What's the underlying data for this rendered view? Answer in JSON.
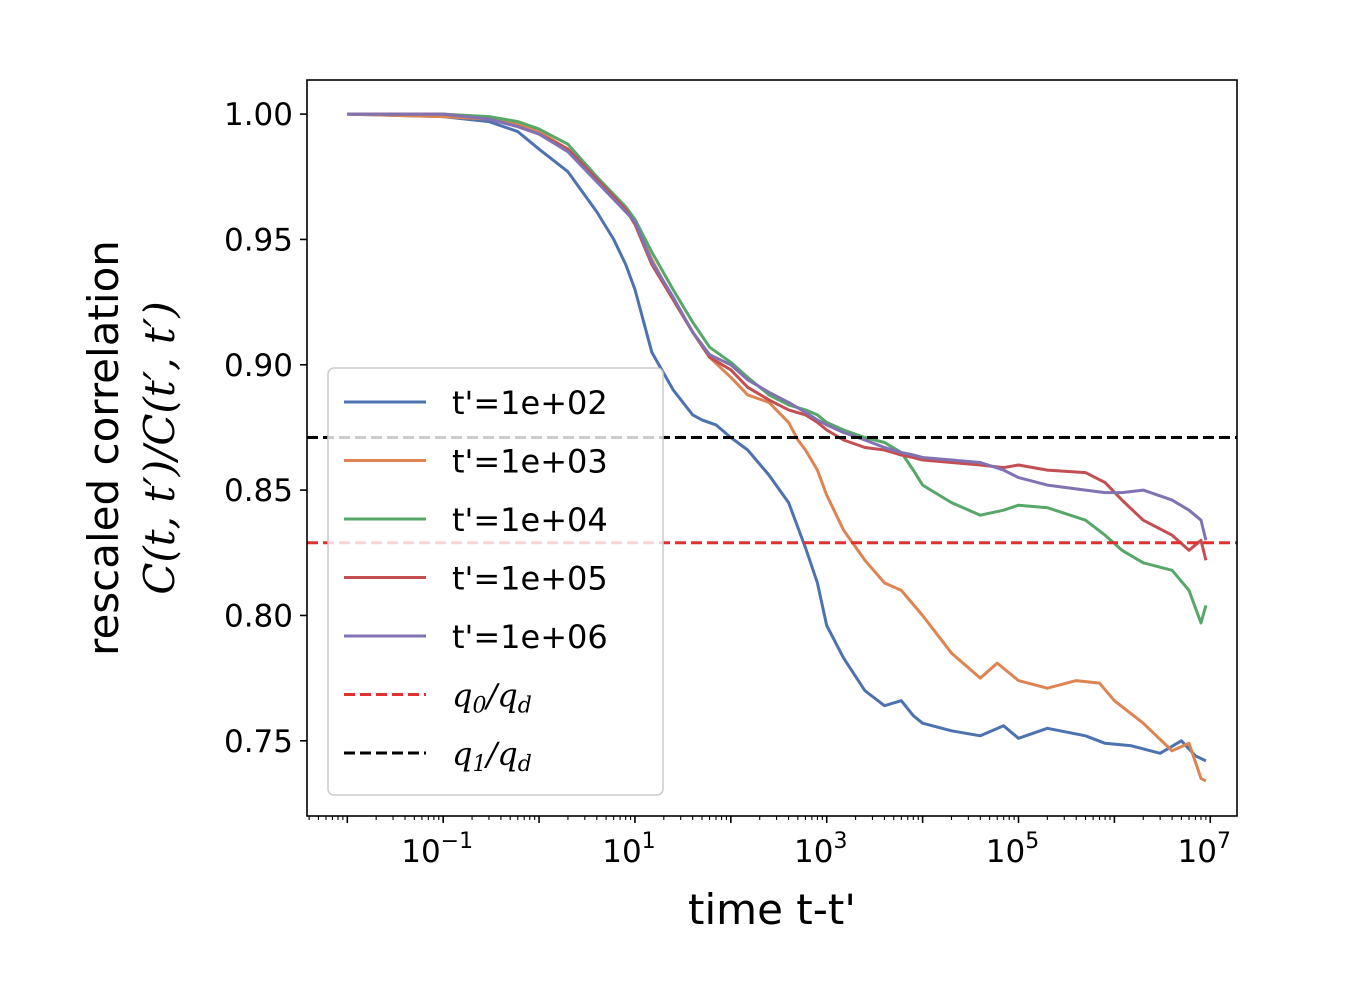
{
  "chart_data": {
    "type": "line",
    "xlabel": "time t-t'",
    "ylabel_line1": "rescaled correlation",
    "ylabel_line2": "C(t, t′)/C(t′, t′)",
    "x_scale": "log",
    "xlim": [
      0.0038,
      19000000
    ],
    "ylim": [
      0.72,
      1.0136
    ],
    "x_ticks": [
      {
        "value": 0.1,
        "base": "10",
        "exp": "−1"
      },
      {
        "value": 10,
        "base": "10",
        "exp": "1"
      },
      {
        "value": 1000,
        "base": "10",
        "exp": "3"
      },
      {
        "value": 100000,
        "base": "10",
        "exp": "5"
      },
      {
        "value": 10000000,
        "base": "10",
        "exp": "7"
      }
    ],
    "y_ticks": [
      {
        "value": 0.75,
        "label": "0.75"
      },
      {
        "value": 0.8,
        "label": "0.80"
      },
      {
        "value": 0.85,
        "label": "0.85"
      },
      {
        "value": 0.9,
        "label": "0.90"
      },
      {
        "value": 0.95,
        "label": "0.95"
      },
      {
        "value": 1.0,
        "label": "1.00"
      }
    ],
    "grid": false,
    "legend_position": "lower-left",
    "series": [
      {
        "name": "t'=1e+02",
        "color": "#4c72b0",
        "style": "solid",
        "x": [
          0.01,
          0.1,
          0.3,
          0.6,
          1,
          2,
          4,
          6,
          8,
          10,
          15,
          25,
          40,
          50,
          70,
          100,
          150,
          250,
          400,
          600,
          800,
          1000,
          1500,
          2500,
          4000,
          6000,
          8000,
          10000,
          20000,
          40000,
          70000,
          100000,
          200000,
          500000,
          800000,
          1500000,
          3000000,
          5000000,
          7000000,
          9000000
        ],
        "y": [
          1.0,
          0.999,
          0.997,
          0.993,
          0.986,
          0.977,
          0.961,
          0.95,
          0.94,
          0.93,
          0.905,
          0.89,
          0.88,
          0.878,
          0.876,
          0.871,
          0.866,
          0.856,
          0.845,
          0.827,
          0.813,
          0.796,
          0.783,
          0.77,
          0.764,
          0.766,
          0.76,
          0.757,
          0.754,
          0.752,
          0.756,
          0.751,
          0.755,
          0.752,
          0.749,
          0.748,
          0.745,
          0.75,
          0.744,
          0.742
        ]
      },
      {
        "name": "t'=1e+03",
        "color": "#dd8452",
        "style": "solid",
        "x": [
          0.01,
          0.1,
          0.3,
          0.6,
          1,
          2,
          4,
          6,
          8,
          10,
          15,
          25,
          40,
          60,
          100,
          150,
          250,
          400,
          500,
          600,
          800,
          1000,
          1500,
          2500,
          4000,
          6000,
          10000,
          20000,
          40000,
          60000,
          100000,
          200000,
          400000,
          700000,
          1000000,
          2000000,
          4000000,
          6000000,
          8000000,
          9000000
        ],
        "y": [
          1.0,
          0.999,
          0.998,
          0.996,
          0.993,
          0.986,
          0.974,
          0.967,
          0.962,
          0.957,
          0.942,
          0.926,
          0.913,
          0.903,
          0.895,
          0.888,
          0.885,
          0.877,
          0.87,
          0.866,
          0.858,
          0.848,
          0.834,
          0.822,
          0.813,
          0.81,
          0.8,
          0.785,
          0.775,
          0.781,
          0.774,
          0.771,
          0.774,
          0.773,
          0.766,
          0.757,
          0.746,
          0.749,
          0.735,
          0.734
        ]
      },
      {
        "name": "t'=1e+04",
        "color": "#55a868",
        "style": "solid",
        "x": [
          0.01,
          0.1,
          0.3,
          0.6,
          1,
          2,
          4,
          6,
          8,
          10,
          15,
          25,
          40,
          60,
          100,
          150,
          250,
          400,
          600,
          800,
          1000,
          1500,
          2500,
          4000,
          6000,
          8000,
          10000,
          20000,
          40000,
          70000,
          100000,
          200000,
          500000,
          800000,
          1200000,
          2000000,
          4000000,
          6000000,
          8000000,
          9000000
        ],
        "y": [
          1.0,
          1.0,
          0.999,
          0.997,
          0.994,
          0.988,
          0.975,
          0.968,
          0.963,
          0.958,
          0.945,
          0.93,
          0.917,
          0.907,
          0.901,
          0.895,
          0.888,
          0.884,
          0.882,
          0.88,
          0.877,
          0.874,
          0.871,
          0.869,
          0.865,
          0.858,
          0.852,
          0.845,
          0.84,
          0.842,
          0.844,
          0.843,
          0.838,
          0.832,
          0.826,
          0.821,
          0.818,
          0.81,
          0.797,
          0.804
        ]
      },
      {
        "name": "t'=1e+05",
        "color": "#c44e52",
        "style": "solid",
        "x": [
          0.01,
          0.1,
          0.3,
          0.6,
          1,
          2,
          4,
          6,
          8,
          10,
          15,
          25,
          40,
          60,
          100,
          150,
          250,
          400,
          600,
          800,
          1000,
          1500,
          2500,
          4000,
          6000,
          8000,
          10000,
          20000,
          40000,
          70000,
          100000,
          200000,
          500000,
          800000,
          1200000,
          2000000,
          4000000,
          6000000,
          8000000,
          9000000
        ],
        "y": [
          1.0,
          1.0,
          0.998,
          0.995,
          0.992,
          0.986,
          0.974,
          0.967,
          0.962,
          0.956,
          0.94,
          0.926,
          0.913,
          0.903,
          0.898,
          0.891,
          0.886,
          0.882,
          0.88,
          0.877,
          0.874,
          0.87,
          0.867,
          0.866,
          0.864,
          0.863,
          0.862,
          0.861,
          0.86,
          0.859,
          0.86,
          0.858,
          0.857,
          0.853,
          0.846,
          0.838,
          0.832,
          0.826,
          0.83,
          0.822
        ]
      },
      {
        "name": "t'=1e+06",
        "color": "#8172b3",
        "style": "solid",
        "x": [
          0.01,
          0.1,
          0.3,
          0.6,
          1,
          2,
          4,
          6,
          8,
          10,
          15,
          25,
          40,
          60,
          100,
          150,
          250,
          400,
          600,
          800,
          1000,
          1500,
          2500,
          4000,
          6000,
          8000,
          10000,
          20000,
          40000,
          70000,
          100000,
          200000,
          500000,
          800000,
          1200000,
          2000000,
          4000000,
          6000000,
          8000000,
          9000000
        ],
        "y": [
          1.0,
          1.0,
          0.998,
          0.995,
          0.992,
          0.985,
          0.973,
          0.966,
          0.961,
          0.957,
          0.941,
          0.927,
          0.913,
          0.904,
          0.9,
          0.894,
          0.889,
          0.885,
          0.881,
          0.878,
          0.876,
          0.873,
          0.87,
          0.867,
          0.865,
          0.864,
          0.863,
          0.862,
          0.861,
          0.858,
          0.855,
          0.852,
          0.85,
          0.849,
          0.849,
          0.85,
          0.846,
          0.842,
          0.838,
          0.83
        ]
      },
      {
        "name": "q0/qd",
        "legend_sub": "0",
        "legend_sub2": "d",
        "color": "#e03030",
        "style": "dashed",
        "x": [
          0.0038,
          19000000
        ],
        "y": [
          0.829,
          0.829
        ]
      },
      {
        "name": "q1/qd",
        "legend_sub": "1",
        "legend_sub2": "d",
        "color": "#000000",
        "style": "dashed",
        "x": [
          0.0038,
          19000000
        ],
        "y": [
          0.871,
          0.871
        ]
      }
    ]
  }
}
